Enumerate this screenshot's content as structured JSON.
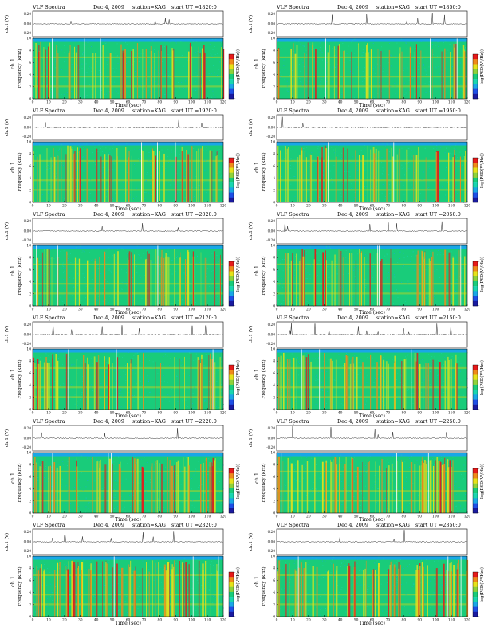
{
  "header_labels": {
    "title": "VLF Spectra",
    "date": "Dec 4, 2009",
    "station": "station=KAG",
    "start_prefix": "start  UT  ="
  },
  "axis_labels": {
    "wave_ylabel": "ch.1 (V)",
    "spec_ylabel": "Frequency  (kHz)",
    "ch_label": "ch.1",
    "xlabel": "Time  (sec)",
    "colorbar_label": "log(PSD(V²/Hz))",
    "wave_ticks": [
      "0.20",
      "0.00",
      "-0.20"
    ],
    "freq_ticks": [
      "10",
      "8",
      "6",
      "4",
      "2",
      "0"
    ],
    "colorbar_ticks": [
      "-",
      "-"
    ]
  },
  "colors": {
    "spectrogram_background": "#19cc7a",
    "colorscale": [
      "#1a1aa0",
      "#1e4fe6",
      "#1aa7e6",
      "#19d6b0",
      "#19cc7a",
      "#8fd23a",
      "#e6e21a",
      "#f08a1a",
      "#e61a1a",
      "#ffffff"
    ]
  },
  "chart_data": [
    {
      "type": "heatmap",
      "start_ut": "1820:0",
      "time_ticks": [
        "0",
        "10",
        "20",
        "30",
        "40",
        "50",
        "60",
        "70",
        "80",
        "90",
        "100",
        "110",
        "120"
      ],
      "xlim": [
        0,
        120
      ],
      "ylim_khz": [
        0,
        10
      ],
      "activity": 0.55,
      "seed": 11
    },
    {
      "type": "heatmap",
      "start_ut": "1850:0",
      "time_ticks": [
        "0",
        "10",
        "20",
        "30",
        "40",
        "50",
        "60",
        "70",
        "80",
        "90",
        "100",
        "110",
        "120"
      ],
      "xlim": [
        0,
        120
      ],
      "ylim_khz": [
        0,
        10
      ],
      "activity": 0.55,
      "seed": 23
    },
    {
      "type": "heatmap",
      "start_ut": "1920:0",
      "time_ticks": [
        "0",
        "10",
        "20",
        "30",
        "40",
        "50",
        "60",
        "70",
        "80",
        "90",
        "100",
        "110",
        "120"
      ],
      "xlim": [
        0,
        120
      ],
      "ylim_khz": [
        0,
        10
      ],
      "activity": 0.6,
      "seed": 37
    },
    {
      "type": "heatmap",
      "start_ut": "1950:0",
      "time_ticks": [
        "0",
        "10",
        "20",
        "30",
        "40",
        "50",
        "60",
        "70",
        "80",
        "90",
        "100",
        "110",
        "120"
      ],
      "xlim": [
        0,
        120
      ],
      "ylim_khz": [
        0,
        10
      ],
      "activity": 0.6,
      "seed": 41
    },
    {
      "type": "heatmap",
      "start_ut": "2020:0",
      "time_ticks": [
        "0",
        "10",
        "20",
        "30",
        "40",
        "50",
        "60",
        "70",
        "80",
        "90",
        "100",
        "110",
        "120"
      ],
      "xlim": [
        0,
        120
      ],
      "ylim_khz": [
        0,
        10
      ],
      "activity": 0.55,
      "seed": 53
    },
    {
      "type": "heatmap",
      "start_ut": "2050:0",
      "time_ticks": [
        "0",
        "10",
        "20",
        "30",
        "40",
        "50",
        "60",
        "70",
        "80",
        "90",
        "100",
        "110",
        "120"
      ],
      "xlim": [
        0,
        120
      ],
      "ylim_khz": [
        0,
        10
      ],
      "activity": 0.65,
      "seed": 67
    },
    {
      "type": "heatmap",
      "start_ut": "2120:0",
      "time_ticks": [
        "0",
        "10",
        "20",
        "30",
        "40",
        "50",
        "60",
        "70",
        "80",
        "90",
        "100",
        "110",
        "120"
      ],
      "xlim": [
        0,
        120
      ],
      "ylim_khz": [
        0,
        10
      ],
      "activity": 0.6,
      "seed": 71
    },
    {
      "type": "heatmap",
      "start_ut": "2150:0",
      "time_ticks": [
        "0",
        "10",
        "20",
        "30",
        "40",
        "50",
        "60",
        "70",
        "80",
        "90",
        "100",
        "110",
        "120"
      ],
      "xlim": [
        0,
        120
      ],
      "ylim_khz": [
        0,
        10
      ],
      "activity": 0.7,
      "seed": 83
    },
    {
      "type": "heatmap",
      "start_ut": "2220:0",
      "time_ticks": [
        "0",
        "10",
        "20",
        "30",
        "40",
        "50",
        "60",
        "70",
        "80",
        "90",
        "100",
        "110",
        "120"
      ],
      "xlim": [
        0,
        120
      ],
      "ylim_khz": [
        0,
        10
      ],
      "activity": 0.75,
      "seed": 97
    },
    {
      "type": "heatmap",
      "start_ut": "2250:0",
      "time_ticks": [
        "0",
        "10",
        "20",
        "30",
        "40",
        "50",
        "60",
        "70",
        "80",
        "90",
        "100",
        "110",
        "120"
      ],
      "xlim": [
        0,
        120
      ],
      "ylim_khz": [
        0,
        10
      ],
      "activity": 0.85,
      "seed": 101
    },
    {
      "type": "heatmap",
      "start_ut": "2320:0",
      "time_ticks": [
        "0",
        "10",
        "20",
        "30",
        "40",
        "50",
        "60",
        "70",
        "80",
        "90",
        "100",
        "110",
        "120"
      ],
      "xlim": [
        0,
        120
      ],
      "ylim_khz": [
        0,
        10
      ],
      "activity": 0.85,
      "seed": 113
    },
    {
      "type": "heatmap",
      "start_ut": "2350:0",
      "time_ticks": [
        "0",
        "10",
        "20",
        "30",
        "40",
        "50",
        "60",
        "70",
        "80",
        "90",
        "100",
        "110",
        "120"
      ],
      "xlim": [
        0,
        120
      ],
      "ylim_khz": [
        0,
        10
      ],
      "activity": 0.8,
      "seed": 127
    }
  ]
}
